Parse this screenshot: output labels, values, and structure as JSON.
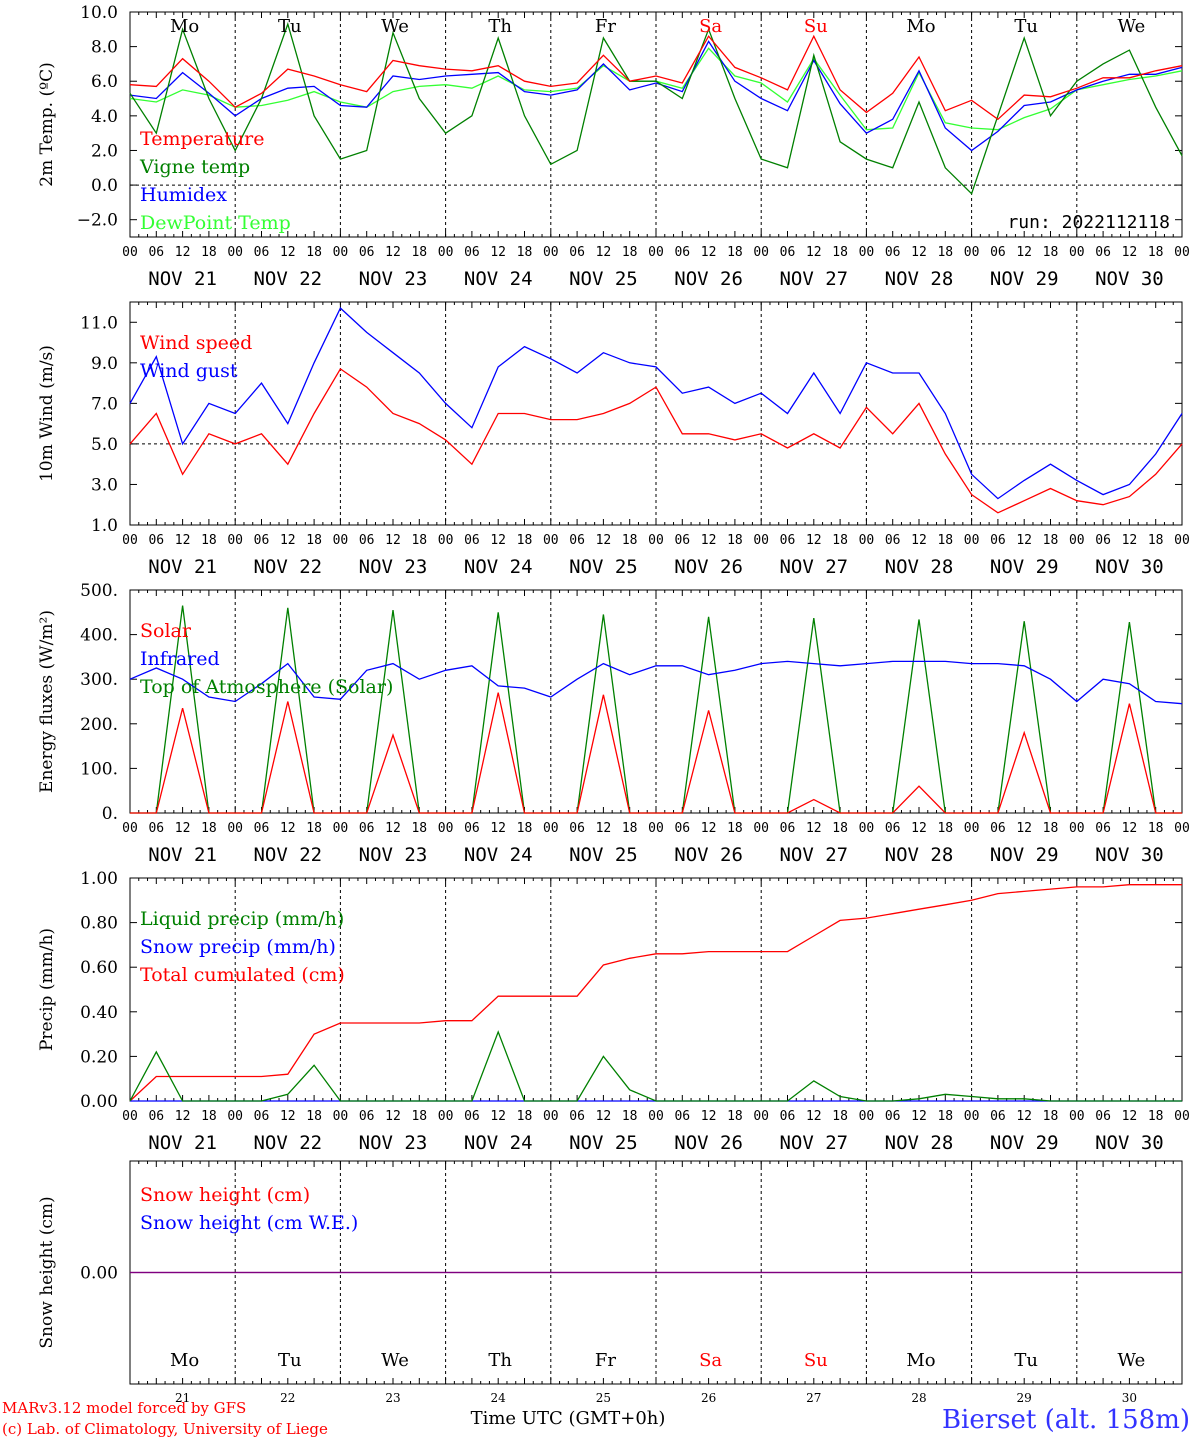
{
  "footer": {
    "credit_line1": "MARv3.12 model forced by GFS",
    "credit_line2": "(c) Lab. of Climatology, University of Liege",
    "xlabel": "Time UTC (GMT+0h)",
    "station": "Bierset (alt. 158m)"
  },
  "days": {
    "weekday_labels": [
      "Mo",
      "Tu",
      "We",
      "Th",
      "Fr",
      "Sa",
      "Su",
      "Mo",
      "Tu",
      "We"
    ],
    "weekend_flags": [
      false,
      false,
      false,
      false,
      false,
      true,
      true,
      false,
      false,
      false
    ],
    "date_labels": [
      "NOV 21",
      "NOV 22",
      "NOV 23",
      "NOV 24",
      "NOV 25",
      "NOV 26",
      "NOV 27",
      "NOV 28",
      "NOV 29",
      "NOV 30"
    ],
    "day_numbers": [
      "21",
      "22",
      "23",
      "24",
      "25",
      "26",
      "27",
      "28",
      "29",
      "30"
    ],
    "hour_labels": [
      "00",
      "06",
      "12",
      "18"
    ],
    "final_hour_label": "00"
  },
  "colors": {
    "red": "#ff0000",
    "green": "#008000",
    "blue": "#0000ff",
    "lightgreen": "#33ff33",
    "purple": "#7f007f",
    "station_blue": "#3333ff"
  },
  "chart_data": [
    {
      "type": "line",
      "ylabel": "2m Temp. (ºC)",
      "ylim": [
        -3.0,
        10.0
      ],
      "yticks": [
        -2.0,
        0.0,
        2.0,
        4.0,
        6.0,
        8.0,
        10.0
      ],
      "ytick_labels": [
        "−2.0",
        "0.0",
        "2.0",
        "4.0",
        "6.0",
        "8.0",
        "10.0"
      ],
      "reference_line": 0.0,
      "annotation": "run: 2022112118",
      "x_hours": [
        0,
        6,
        12,
        18,
        24,
        30,
        36,
        42,
        48,
        54,
        60,
        66,
        72,
        78,
        84,
        90,
        96,
        102,
        108,
        114,
        120,
        126,
        132,
        138,
        144,
        150,
        156,
        162,
        168,
        174,
        180,
        186,
        192,
        198,
        204,
        210,
        216,
        222,
        228,
        234,
        240
      ],
      "series": [
        {
          "name": "Temperature",
          "color": "red",
          "values": [
            5.8,
            5.7,
            7.3,
            6.0,
            4.5,
            5.3,
            6.7,
            6.3,
            5.8,
            5.4,
            7.2,
            6.9,
            6.7,
            6.6,
            6.9,
            6.0,
            5.7,
            5.9,
            7.5,
            6.0,
            6.3,
            5.9,
            8.6,
            6.8,
            6.2,
            5.5,
            8.6,
            5.5,
            4.2,
            5.3,
            7.4,
            4.3,
            4.9,
            3.8,
            5.2,
            5.1,
            5.6,
            6.2,
            6.2,
            6.6,
            6.9
          ]
        },
        {
          "name": "Vigne temp",
          "color": "green",
          "values": [
            5.3,
            3.0,
            9.0,
            5.0,
            2.0,
            5.0,
            9.3,
            4.0,
            1.5,
            2.0,
            8.8,
            5.0,
            3.0,
            4.0,
            8.5,
            4.0,
            1.2,
            2.0,
            8.5,
            6.0,
            6.0,
            5.0,
            9.0,
            5.0,
            1.5,
            1.0,
            7.5,
            2.5,
            1.5,
            1.0,
            4.8,
            1.0,
            -0.5,
            4.0,
            8.5,
            4.0,
            6.0,
            7.0,
            7.8,
            4.5,
            1.7
          ]
        },
        {
          "name": "Humidex",
          "color": "blue",
          "values": [
            5.2,
            5.0,
            6.5,
            5.3,
            4.0,
            5.0,
            5.6,
            5.7,
            4.6,
            4.5,
            6.3,
            6.1,
            6.3,
            6.4,
            6.5,
            5.4,
            5.2,
            5.5,
            7.0,
            5.5,
            5.9,
            5.4,
            8.3,
            6.0,
            5.0,
            4.3,
            7.2,
            4.7,
            3.0,
            3.8,
            6.6,
            3.3,
            2.0,
            3.1,
            4.6,
            4.8,
            5.5,
            6.0,
            6.4,
            6.4,
            6.8
          ]
        },
        {
          "name": "DewPoint Temp",
          "color": "lightgreen",
          "values": [
            5.0,
            4.8,
            5.5,
            5.2,
            4.5,
            4.6,
            4.9,
            5.4,
            4.8,
            4.5,
            5.4,
            5.7,
            5.8,
            5.6,
            6.3,
            5.5,
            5.4,
            5.6,
            6.9,
            6.0,
            6.0,
            5.6,
            7.9,
            6.3,
            5.9,
            4.8,
            7.3,
            5.2,
            3.2,
            3.3,
            6.5,
            3.6,
            3.3,
            3.2,
            3.9,
            4.4,
            5.5,
            5.8,
            6.1,
            6.3,
            6.6
          ]
        }
      ]
    },
    {
      "type": "line",
      "ylabel": "10m Wind (m/s)",
      "ylim": [
        1.0,
        12.0
      ],
      "yticks": [
        1.0,
        3.0,
        5.0,
        7.0,
        9.0,
        11.0
      ],
      "ytick_labels": [
        "1.0",
        "3.0",
        "5.0",
        "7.0",
        "9.0",
        "11.0"
      ],
      "reference_line": 5.0,
      "x_hours": [
        0,
        6,
        12,
        18,
        24,
        30,
        36,
        42,
        48,
        54,
        60,
        66,
        72,
        78,
        84,
        90,
        96,
        102,
        108,
        114,
        120,
        126,
        132,
        138,
        144,
        150,
        156,
        162,
        168,
        174,
        180,
        186,
        192,
        198,
        204,
        210,
        216,
        222,
        228,
        234,
        240
      ],
      "series": [
        {
          "name": "Wind speed",
          "color": "red",
          "values": [
            5.0,
            6.5,
            3.5,
            5.5,
            5.0,
            5.5,
            4.0,
            6.5,
            8.7,
            7.8,
            6.5,
            6.0,
            5.2,
            4.0,
            6.5,
            6.5,
            6.2,
            6.2,
            6.5,
            7.0,
            7.8,
            5.5,
            5.5,
            5.2,
            5.5,
            4.8,
            5.5,
            4.8,
            6.8,
            5.5,
            7.0,
            4.5,
            2.5,
            1.6,
            2.2,
            2.8,
            2.2,
            2.0,
            2.4,
            3.5,
            5.0
          ]
        },
        {
          "name": "Wind gust",
          "color": "blue",
          "values": [
            7.0,
            9.3,
            5.0,
            7.0,
            6.5,
            8.0,
            6.0,
            9.0,
            11.7,
            10.5,
            9.5,
            8.5,
            7.0,
            5.8,
            8.8,
            9.8,
            9.2,
            8.5,
            9.5,
            9.0,
            8.8,
            7.5,
            7.8,
            7.0,
            7.5,
            6.5,
            8.5,
            6.5,
            9.0,
            8.5,
            8.5,
            6.5,
            3.5,
            2.3,
            3.2,
            4.0,
            3.2,
            2.5,
            3.0,
            4.5,
            6.5
          ]
        }
      ]
    },
    {
      "type": "line",
      "ylabel": "Energy fluxes (W/m²)",
      "ylim": [
        0,
        500
      ],
      "yticks": [
        0,
        100,
        200,
        300,
        400,
        500
      ],
      "ytick_labels": [
        "0.",
        "100.",
        "200.",
        "300.",
        "400.",
        "500."
      ],
      "x_hours": [
        0,
        6,
        12,
        18,
        24,
        30,
        36,
        42,
        48,
        54,
        60,
        66,
        72,
        78,
        84,
        90,
        96,
        102,
        108,
        114,
        120,
        126,
        132,
        138,
        144,
        150,
        156,
        162,
        168,
        174,
        180,
        186,
        192,
        198,
        204,
        210,
        216,
        222,
        228,
        234,
        240
      ],
      "series": [
        {
          "name": "Solar",
          "color": "red",
          "values": [
            0,
            0,
            235,
            0,
            0,
            0,
            250,
            0,
            0,
            0,
            175,
            0,
            0,
            0,
            270,
            0,
            0,
            0,
            265,
            0,
            0,
            0,
            230,
            0,
            0,
            0,
            30,
            0,
            0,
            0,
            60,
            0,
            0,
            0,
            180,
            0,
            0,
            0,
            245,
            0,
            0
          ]
        },
        {
          "name": "Infrared",
          "color": "blue",
          "values": [
            300,
            325,
            300,
            260,
            250,
            290,
            335,
            260,
            255,
            320,
            335,
            300,
            320,
            330,
            285,
            280,
            260,
            300,
            335,
            310,
            330,
            330,
            310,
            320,
            335,
            340,
            335,
            330,
            335,
            340,
            340,
            340,
            335,
            335,
            330,
            300,
            250,
            300,
            290,
            250,
            245
          ]
        },
        {
          "name": "Top of Atmosphere (Solar)",
          "color": "green",
          "values": [
            0,
            0,
            465,
            0,
            0,
            0,
            460,
            0,
            0,
            0,
            455,
            0,
            0,
            0,
            450,
            0,
            0,
            0,
            445,
            0,
            0,
            0,
            440,
            0,
            0,
            0,
            437,
            0,
            0,
            0,
            434,
            0,
            0,
            0,
            430,
            0,
            0,
            0,
            428,
            0,
            0
          ]
        }
      ]
    },
    {
      "type": "line",
      "ylabel": "Precip (mm/h)",
      "ylim": [
        0.0,
        1.0
      ],
      "yticks": [
        0.0,
        0.2,
        0.4,
        0.6,
        0.8,
        1.0
      ],
      "ytick_labels": [
        "0.00",
        "0.20",
        "0.40",
        "0.60",
        "0.80",
        "1.00"
      ],
      "x_hours": [
        0,
        6,
        12,
        18,
        24,
        30,
        36,
        42,
        48,
        54,
        60,
        66,
        72,
        78,
        84,
        90,
        96,
        102,
        108,
        114,
        120,
        126,
        132,
        138,
        144,
        150,
        156,
        162,
        168,
        174,
        180,
        186,
        192,
        198,
        204,
        210,
        216,
        222,
        228,
        234,
        240
      ],
      "series": [
        {
          "name": "Liquid precip (mm/h)",
          "color": "green",
          "values": [
            0,
            0.22,
            0,
            0,
            0,
            0,
            0.03,
            0.16,
            0,
            0,
            0,
            0,
            0,
            0,
            0.31,
            0,
            0,
            0,
            0.2,
            0.05,
            0,
            0,
            0,
            0,
            0,
            0,
            0.09,
            0.02,
            0,
            0,
            0.01,
            0.03,
            0.02,
            0.01,
            0.01,
            0,
            0,
            0,
            0,
            0,
            0
          ]
        },
        {
          "name": "Snow precip (mm/h)",
          "color": "blue",
          "values": [
            0,
            0,
            0,
            0,
            0,
            0,
            0,
            0,
            0,
            0,
            0,
            0,
            0,
            0,
            0,
            0,
            0,
            0,
            0,
            0,
            0,
            0,
            0,
            0,
            0,
            0,
            0,
            0,
            0,
            0,
            0,
            0,
            0,
            0,
            0,
            0,
            0,
            0,
            0,
            0,
            0
          ]
        },
        {
          "name": "Total cumulated (cm)",
          "color": "red",
          "values": [
            0,
            0.11,
            0.11,
            0.11,
            0.11,
            0.11,
            0.12,
            0.3,
            0.35,
            0.35,
            0.35,
            0.35,
            0.36,
            0.36,
            0.47,
            0.47,
            0.47,
            0.47,
            0.61,
            0.64,
            0.66,
            0.66,
            0.67,
            0.67,
            0.67,
            0.67,
            0.74,
            0.81,
            0.82,
            0.84,
            0.86,
            0.88,
            0.9,
            0.93,
            0.94,
            0.95,
            0.96,
            0.96,
            0.97,
            0.97,
            0.97
          ]
        }
      ]
    },
    {
      "type": "line",
      "ylabel": "Snow height (cm)",
      "ylim": [
        -1.0,
        1.0
      ],
      "yticks": [
        0.0
      ],
      "ytick_labels": [
        "0.00"
      ],
      "x_hours": [
        0,
        240
      ],
      "series": [
        {
          "name": "Snow height (cm)",
          "color": "red",
          "values": [
            0,
            0
          ]
        },
        {
          "name": "Snow height (cm W.E.)",
          "color": "blue",
          "values": [
            0,
            0
          ]
        }
      ]
    }
  ]
}
